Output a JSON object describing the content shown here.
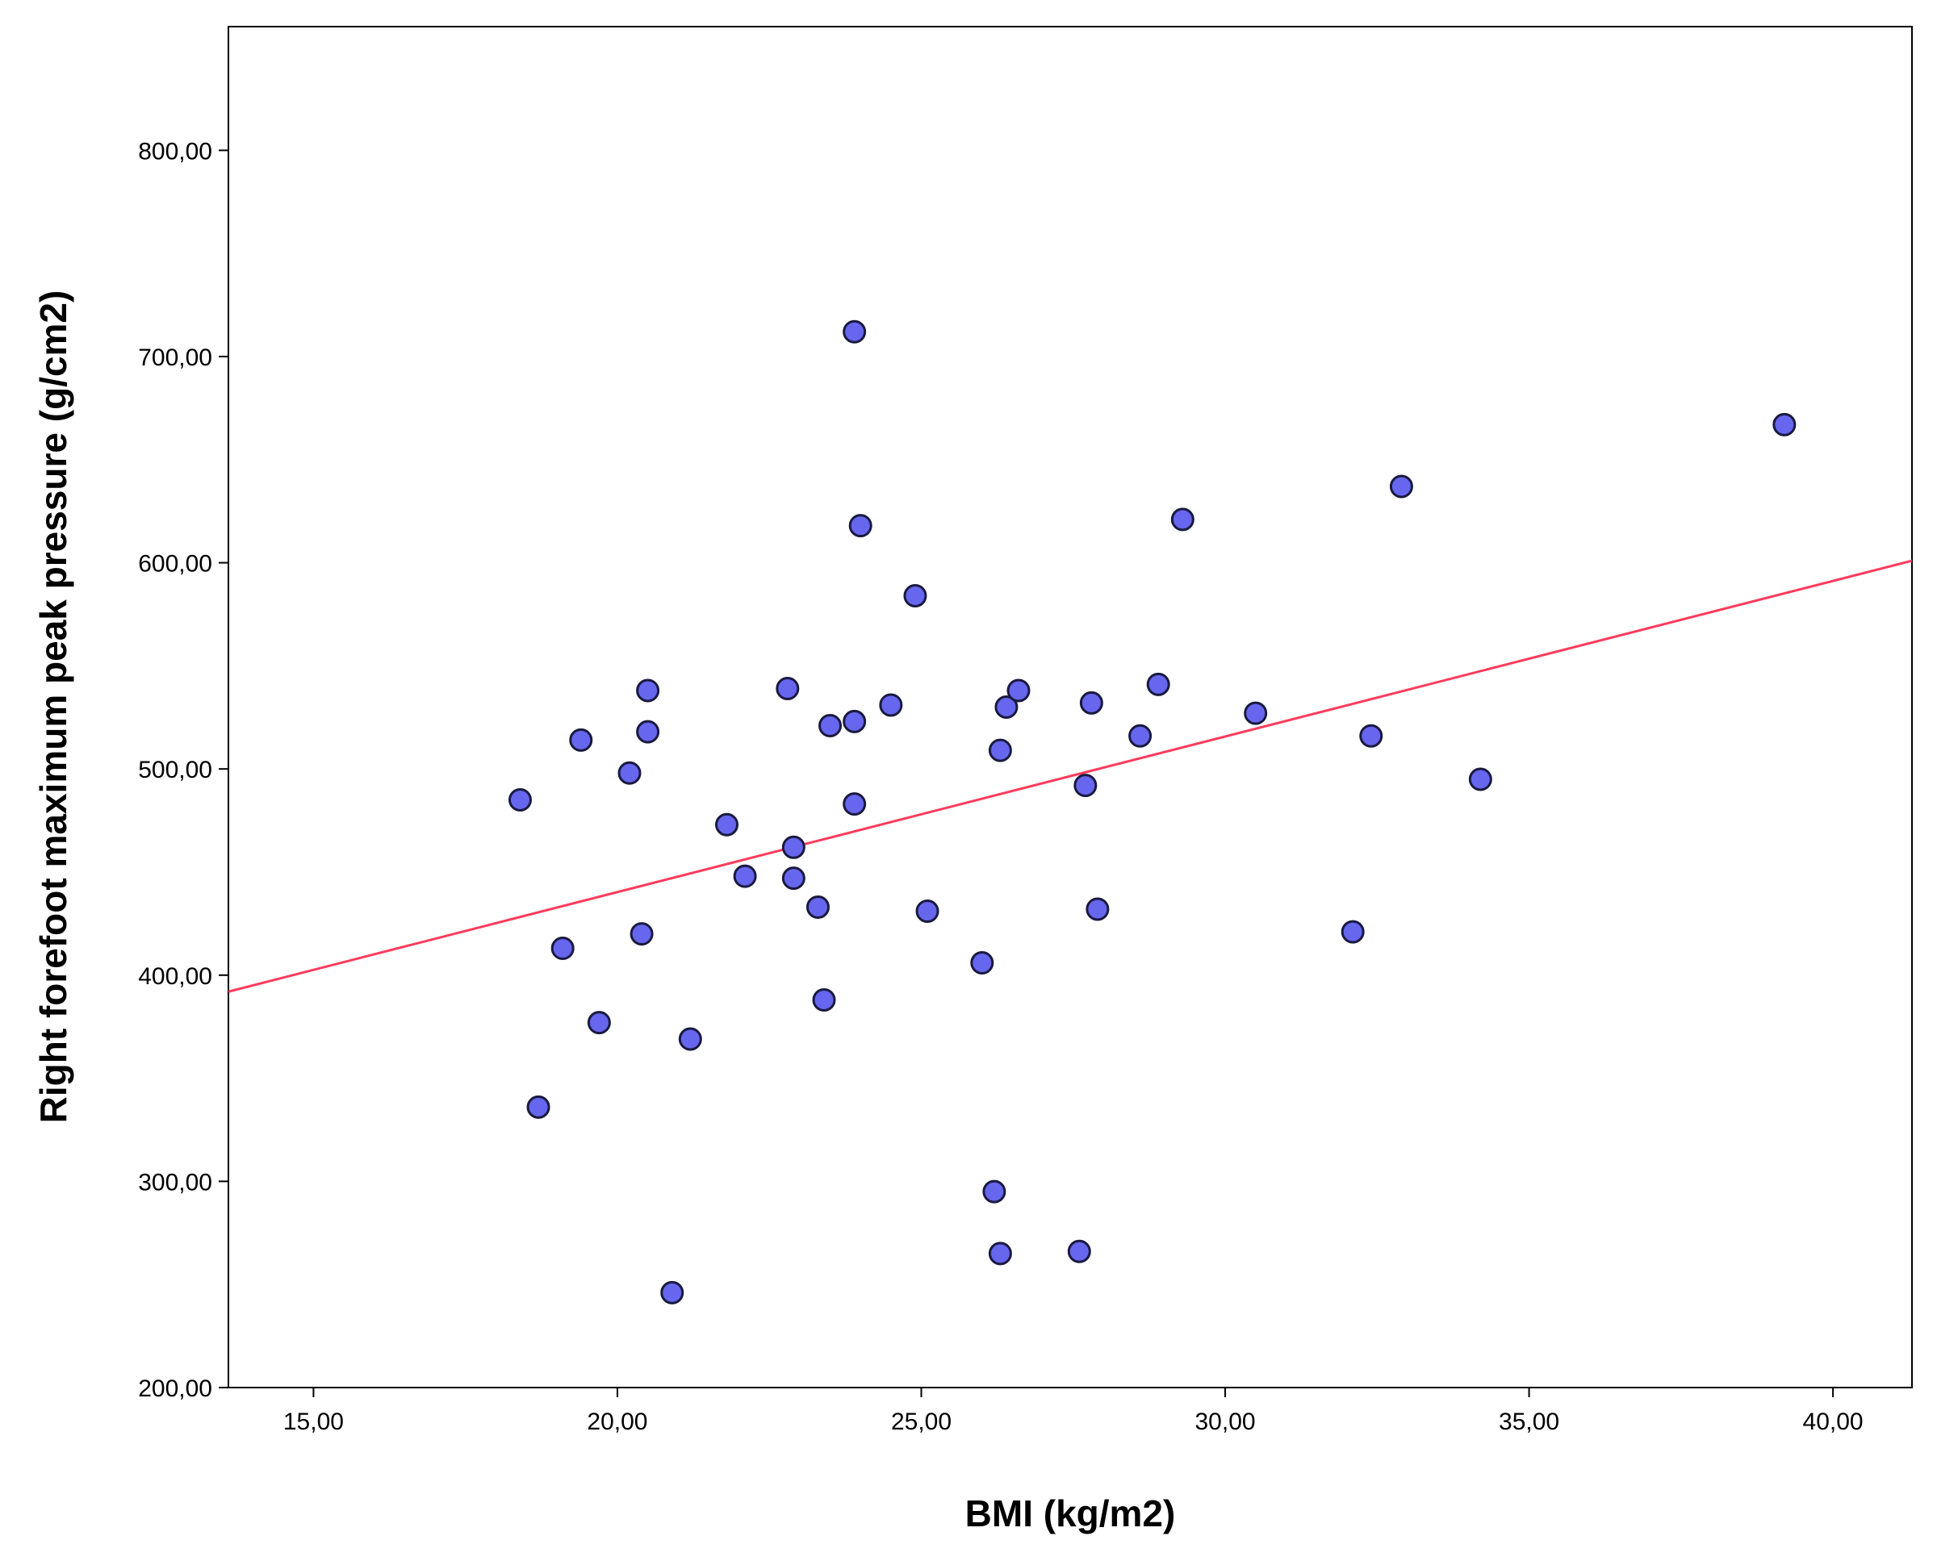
{
  "chart_data": {
    "type": "scatter",
    "xlabel": "BMI (kg/m2)",
    "ylabel": "Right forefoot  maximum peak pressure (g/cm2)",
    "xlim": [
      13.6,
      41.3
    ],
    "ylim": [
      200,
      860
    ],
    "x_ticks": [
      {
        "value": 15,
        "label": "15,00"
      },
      {
        "value": 20,
        "label": "20,00"
      },
      {
        "value": 25,
        "label": "25,00"
      },
      {
        "value": 30,
        "label": "30,00"
      },
      {
        "value": 35,
        "label": "35,00"
      },
      {
        "value": 40,
        "label": "40,00"
      }
    ],
    "y_ticks": [
      {
        "value": 200,
        "label": "200,00"
      },
      {
        "value": 300,
        "label": "300,00"
      },
      {
        "value": 400,
        "label": "400,00"
      },
      {
        "value": 500,
        "label": "500,00"
      },
      {
        "value": 600,
        "label": "600,00"
      },
      {
        "value": 700,
        "label": "700,00"
      },
      {
        "value": 800,
        "label": "800,00"
      }
    ],
    "points": [
      {
        "x": 18.4,
        "y": 485
      },
      {
        "x": 18.7,
        "y": 336
      },
      {
        "x": 19.1,
        "y": 413
      },
      {
        "x": 19.4,
        "y": 514
      },
      {
        "x": 19.7,
        "y": 377
      },
      {
        "x": 20.2,
        "y": 498
      },
      {
        "x": 20.4,
        "y": 420
      },
      {
        "x": 20.5,
        "y": 538
      },
      {
        "x": 20.5,
        "y": 518
      },
      {
        "x": 20.9,
        "y": 246
      },
      {
        "x": 21.2,
        "y": 369
      },
      {
        "x": 21.8,
        "y": 473
      },
      {
        "x": 22.1,
        "y": 448
      },
      {
        "x": 22.8,
        "y": 539
      },
      {
        "x": 22.9,
        "y": 447
      },
      {
        "x": 22.9,
        "y": 462
      },
      {
        "x": 23.3,
        "y": 433
      },
      {
        "x": 23.4,
        "y": 388
      },
      {
        "x": 23.5,
        "y": 521
      },
      {
        "x": 23.9,
        "y": 523
      },
      {
        "x": 23.9,
        "y": 483
      },
      {
        "x": 23.9,
        "y": 712
      },
      {
        "x": 24.0,
        "y": 618
      },
      {
        "x": 24.5,
        "y": 531
      },
      {
        "x": 24.9,
        "y": 584
      },
      {
        "x": 25.1,
        "y": 431
      },
      {
        "x": 26.0,
        "y": 406
      },
      {
        "x": 26.2,
        "y": 295
      },
      {
        "x": 26.3,
        "y": 265
      },
      {
        "x": 26.3,
        "y": 509
      },
      {
        "x": 26.4,
        "y": 530
      },
      {
        "x": 26.6,
        "y": 538
      },
      {
        "x": 27.6,
        "y": 266
      },
      {
        "x": 27.7,
        "y": 492
      },
      {
        "x": 27.8,
        "y": 532
      },
      {
        "x": 27.9,
        "y": 432
      },
      {
        "x": 28.6,
        "y": 516
      },
      {
        "x": 28.9,
        "y": 541
      },
      {
        "x": 29.3,
        "y": 621
      },
      {
        "x": 30.5,
        "y": 527
      },
      {
        "x": 32.1,
        "y": 421
      },
      {
        "x": 32.4,
        "y": 516
      },
      {
        "x": 32.9,
        "y": 637
      },
      {
        "x": 34.2,
        "y": 495
      },
      {
        "x": 39.2,
        "y": 667
      }
    ],
    "fit_line": {
      "x": [
        13.6,
        41.3
      ],
      "y": [
        392,
        601
      ]
    },
    "grid": false,
    "legend": "none",
    "colors": {
      "point_fill": "#6666ee",
      "point_stroke": "#1a1a40",
      "fit_line": "#ff3b5c",
      "axis": "#000000"
    }
  }
}
